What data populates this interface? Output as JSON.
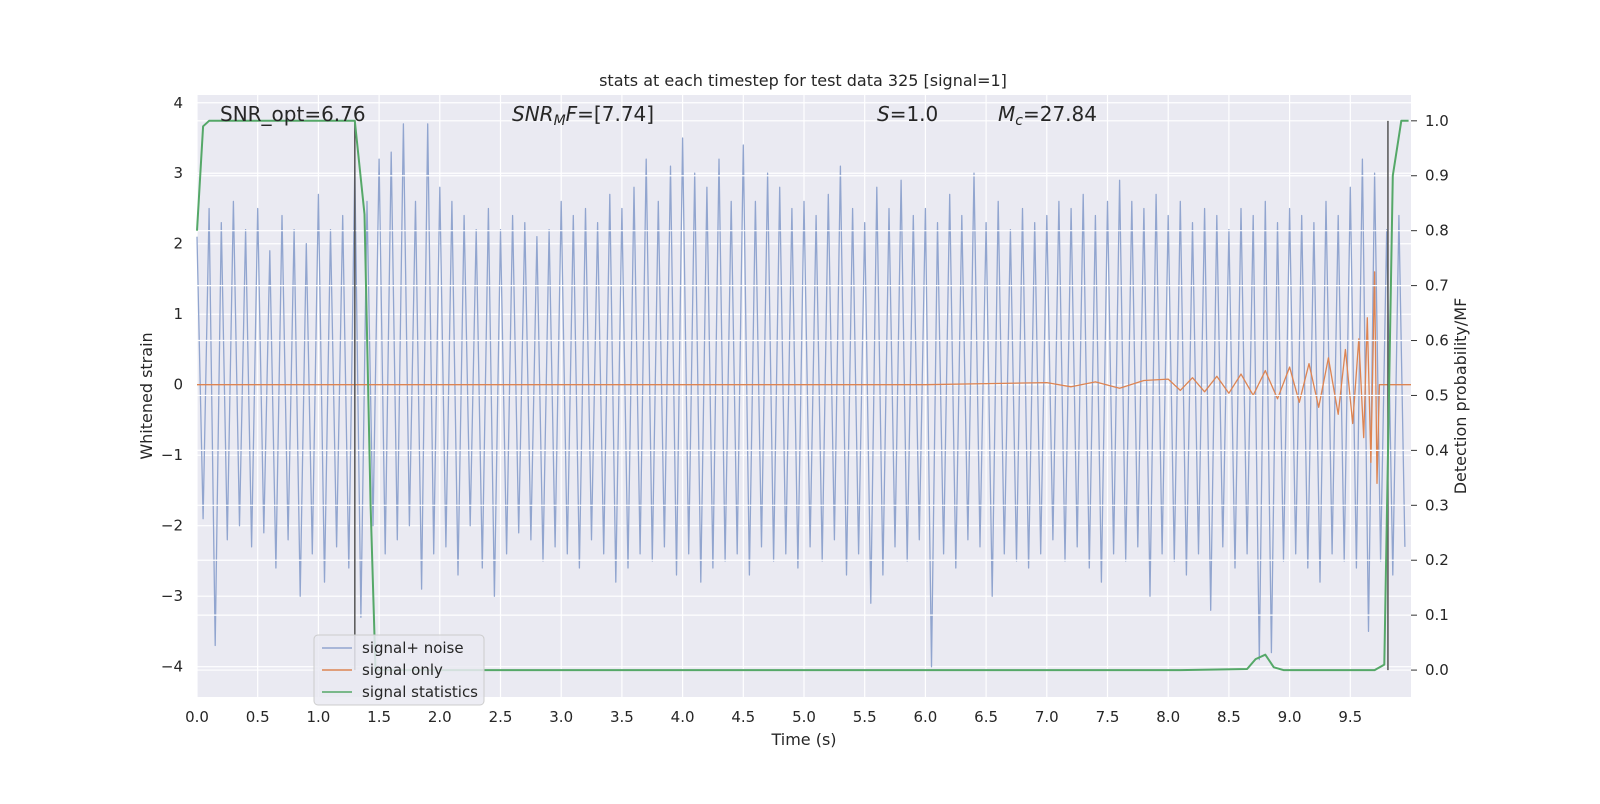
{
  "chart_data": {
    "type": "line",
    "title": "stats at each timestep for test data 325 [signal=1]",
    "xlabel": "Time (s)",
    "ylabel": "Whitened strain",
    "y2label": "Detection probability/MF",
    "annotations": [
      {
        "parts": [
          {
            "text": "SNR_opt=6.76"
          }
        ]
      },
      {
        "parts": [
          {
            "text": "SNR",
            "style": "italic"
          },
          {
            "text": "M",
            "style": "italic-sub"
          },
          {
            "text": "F",
            "style": "italic"
          },
          {
            "text": "=[7.74]"
          }
        ]
      },
      {
        "parts": [
          {
            "text": "S",
            "style": "italic"
          },
          {
            "text": "=1.0"
          }
        ]
      },
      {
        "parts": [
          {
            "text": "M",
            "style": "italic"
          },
          {
            "text": "c",
            "style": "italic-sub"
          },
          {
            "text": "=27.84"
          }
        ]
      }
    ],
    "xlim": [
      0,
      10
    ],
    "ylim": [
      -4.43,
      4.11
    ],
    "y2lim": [
      -0.049,
      1.047
    ],
    "xticks": [
      {
        "value": 0,
        "label": "0.0"
      },
      0.5,
      {
        "value": 1,
        "label": "1.0"
      },
      1.5,
      {
        "value": 2,
        "label": "2.0"
      },
      2.5,
      {
        "value": 3,
        "label": "3.0"
      },
      3.5,
      {
        "value": 4,
        "label": "4.0"
      },
      4.5,
      {
        "value": 5,
        "label": "5.0"
      },
      5.5,
      {
        "value": 6,
        "label": "6.0"
      },
      6.5,
      {
        "value": 7,
        "label": "7.0"
      },
      7.5,
      {
        "value": 8,
        "label": "8.0"
      },
      8.5,
      {
        "value": 9,
        "label": "9.0"
      },
      9.5
    ],
    "yticks": [
      {
        "value": -4,
        "label": "−4"
      },
      {
        "value": -3,
        "label": "−3"
      },
      {
        "value": -2,
        "label": "−2"
      },
      {
        "value": -1,
        "label": "−1"
      },
      0,
      1,
      2,
      3,
      4
    ],
    "y2ticks": [
      {
        "value": 0,
        "label": "0.0"
      },
      0.1,
      0.2,
      0.3,
      0.4,
      0.5,
      0.6,
      0.7,
      0.8,
      0.9,
      {
        "value": 1,
        "label": "1.0"
      }
    ],
    "grid": true,
    "legend": "lower left",
    "vlines": {
      "x": [
        1.3,
        9.81
      ],
      "range": [
        0,
        1
      ],
      "color": "#555555"
    },
    "series": [
      {
        "name": "signal+ noise",
        "color": "#91a5cf",
        "x": [
          0,
          0.05,
          0.1,
          0.15,
          0.2,
          0.25,
          0.3,
          0.35,
          0.4,
          0.45,
          0.5,
          0.55,
          0.6,
          0.65,
          0.7,
          0.75,
          0.8,
          0.85,
          0.9,
          0.95,
          1,
          1.05,
          1.1,
          1.15,
          1.2,
          1.25,
          1.3,
          1.35,
          1.4,
          1.45,
          1.5,
          1.55,
          1.6,
          1.65,
          1.7,
          1.75,
          1.8,
          1.85,
          1.9,
          1.95,
          2,
          2.05,
          2.1,
          2.15,
          2.2,
          2.25,
          2.3,
          2.35,
          2.4,
          2.45,
          2.5,
          2.55,
          2.6,
          2.65,
          2.7,
          2.75,
          2.8,
          2.85,
          2.9,
          2.95,
          3,
          3.05,
          3.1,
          3.15,
          3.2,
          3.25,
          3.3,
          3.35,
          3.4,
          3.45,
          3.5,
          3.55,
          3.6,
          3.65,
          3.7,
          3.75,
          3.8,
          3.85,
          3.9,
          3.95,
          4,
          4.05,
          4.1,
          4.15,
          4.2,
          4.25,
          4.3,
          4.35,
          4.4,
          4.45,
          4.5,
          4.55,
          4.6,
          4.65,
          4.7,
          4.75,
          4.8,
          4.85,
          4.9,
          4.95,
          5,
          5.05,
          5.1,
          5.15,
          5.2,
          5.25,
          5.3,
          5.35,
          5.4,
          5.45,
          5.5,
          5.55,
          5.6,
          5.65,
          5.7,
          5.75,
          5.8,
          5.85,
          5.9,
          5.95,
          6,
          6.05,
          6.1,
          6.15,
          6.2,
          6.25,
          6.3,
          6.35,
          6.4,
          6.45,
          6.5,
          6.55,
          6.6,
          6.65,
          6.7,
          6.75,
          6.8,
          6.85,
          6.9,
          6.95,
          7,
          7.05,
          7.1,
          7.15,
          7.2,
          7.25,
          7.3,
          7.35,
          7.4,
          7.45,
          7.5,
          7.55,
          7.6,
          7.65,
          7.7,
          7.75,
          7.8,
          7.85,
          7.9,
          7.95,
          8,
          8.05,
          8.1,
          8.15,
          8.2,
          8.25,
          8.3,
          8.35,
          8.4,
          8.45,
          8.5,
          8.55,
          8.6,
          8.65,
          8.7,
          8.75,
          8.8,
          8.85,
          8.9,
          8.95,
          9,
          9.05,
          9.1,
          9.15,
          9.2,
          9.25,
          9.3,
          9.35,
          9.4,
          9.45,
          9.5,
          9.55,
          9.6,
          9.65,
          9.7,
          9.75,
          9.8,
          9.85,
          9.9,
          9.95
        ],
        "values": [
          2.1,
          -1.9,
          2.5,
          -3.7,
          2.3,
          -2.2,
          2.6,
          -2.0,
          2.2,
          -2.3,
          2.5,
          -2.1,
          1.9,
          -2.6,
          2.4,
          -2.2,
          2.2,
          -3.0,
          2.0,
          -2.4,
          2.7,
          -2.8,
          2.2,
          -2.3,
          2.4,
          -2.6,
          3.1,
          -3.3,
          2.6,
          -2.0,
          3.2,
          -2.4,
          3.3,
          -2.2,
          3.7,
          -2.0,
          2.6,
          -2.9,
          3.7,
          -2.4,
          2.8,
          -2.3,
          2.6,
          -2.7,
          2.4,
          -2.0,
          2.2,
          -2.6,
          2.5,
          -3.0,
          2.2,
          -2.4,
          2.4,
          -2.1,
          2.3,
          -2.2,
          2.1,
          -2.5,
          2.2,
          -2.3,
          2.6,
          -2.4,
          2.4,
          -2.6,
          2.5,
          -2.2,
          2.3,
          -2.4,
          2.7,
          -2.8,
          2.5,
          -2.6,
          2.8,
          -2.4,
          3.2,
          -2.5,
          2.6,
          -2.3,
          3.1,
          -2.7,
          3.5,
          -2.4,
          3.0,
          -2.8,
          2.8,
          -2.6,
          3.2,
          -2.5,
          2.6,
          -2.4,
          3.4,
          -2.7,
          2.6,
          -2.3,
          3.0,
          -2.5,
          2.8,
          -2.4,
          2.5,
          -2.6,
          2.6,
          -2.3,
          2.4,
          -2.5,
          2.7,
          -2.2,
          3.1,
          -2.7,
          2.5,
          -2.4,
          2.3,
          -3.1,
          2.8,
          -2.7,
          2.5,
          -2.3,
          2.9,
          -2.5,
          2.4,
          -2.2,
          2.5,
          -4.0,
          2.3,
          -2.4,
          2.7,
          -2.6,
          2.4,
          -2.2,
          3.0,
          -2.3,
          2.3,
          -3.0,
          2.6,
          -2.4,
          2.2,
          -2.5,
          2.5,
          -2.6,
          2.3,
          -2.4,
          2.4,
          -2.2,
          2.6,
          -2.5,
          2.5,
          -2.3,
          2.7,
          -2.6,
          2.4,
          -2.8,
          2.6,
          -2.4,
          2.9,
          -2.5,
          2.6,
          -2.3,
          2.5,
          -3.0,
          2.7,
          -2.4,
          2.4,
          -2.5,
          2.6,
          -2.7,
          2.3,
          -2.4,
          2.5,
          -3.2,
          2.4,
          -2.3,
          2.2,
          -2.6,
          2.5,
          -2.4,
          2.4,
          -3.9,
          2.6,
          -3.8,
          2.3,
          -2.5,
          2.5,
          -2.4,
          2.4,
          -2.6,
          2.3,
          -2.8,
          2.6,
          -2.4,
          2.4,
          -2.5,
          2.8,
          -2.6,
          3.2,
          -3.5,
          3.0,
          -2.5,
          2.2,
          -2.7,
          2.4,
          -2.3
        ]
      },
      {
        "name": "signal only",
        "color": "#dd8452",
        "x": [
          0,
          6.0,
          7.0,
          7.2,
          7.4,
          7.6,
          7.8,
          8.0,
          8.1,
          8.2,
          8.3,
          8.4,
          8.5,
          8.6,
          8.7,
          8.8,
          8.9,
          9.0,
          9.08,
          9.16,
          9.24,
          9.32,
          9.4,
          9.46,
          9.52,
          9.57,
          9.61,
          9.64,
          9.67,
          9.7,
          9.72,
          9.74,
          10
        ],
        "values": [
          0,
          0,
          0.03,
          -0.03,
          0.04,
          -0.05,
          0.06,
          0.08,
          -0.08,
          0.1,
          -0.1,
          0.12,
          -0.12,
          0.15,
          -0.15,
          0.2,
          -0.2,
          0.25,
          -0.25,
          0.3,
          -0.32,
          0.38,
          -0.42,
          0.5,
          -0.55,
          0.65,
          -0.75,
          0.95,
          -1.1,
          1.6,
          -1.4,
          0,
          0
        ]
      },
      {
        "name": "signal statistics",
        "color": "#55a868",
        "axis": "y2",
        "x": [
          0,
          0.05,
          0.1,
          1.3,
          1.38,
          1.43,
          1.47,
          8.1,
          8.65,
          8.72,
          8.8,
          8.87,
          8.95,
          9.7,
          9.78,
          9.85,
          9.92,
          9.98
        ],
        "values": [
          0.8,
          0.99,
          1.0,
          1.0,
          0.83,
          0.3,
          0.0,
          0.0,
          0.002,
          0.02,
          0.028,
          0.005,
          0.0,
          0.0,
          0.01,
          0.9,
          1.0,
          1.0
        ]
      }
    ]
  }
}
